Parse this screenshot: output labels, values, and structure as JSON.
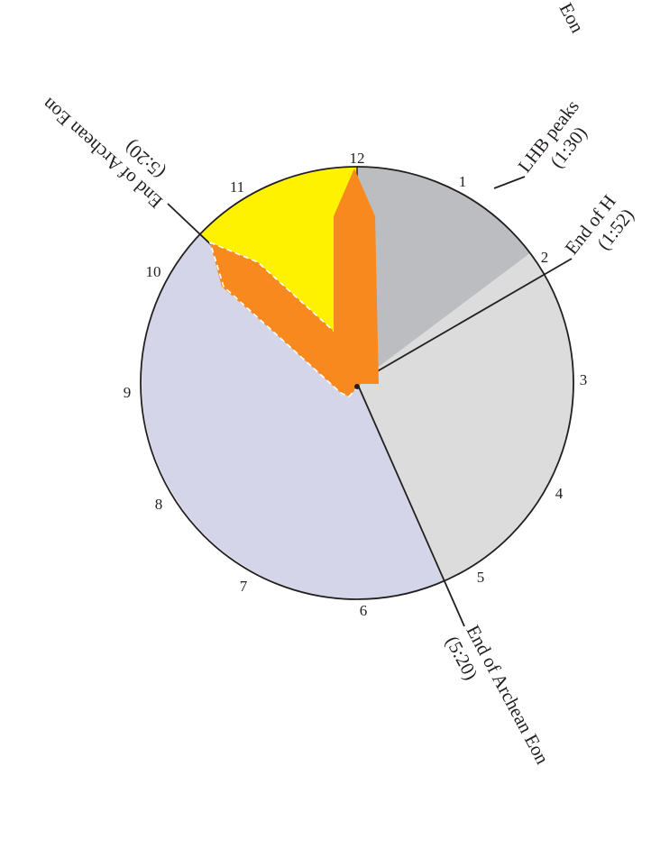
{
  "clock": {
    "numerals": [
      "12",
      "1",
      "2",
      "3",
      "4",
      "5",
      "6",
      "7",
      "8",
      "9",
      "10",
      "11"
    ]
  },
  "labels": {
    "top_right_partial": "Eon",
    "lhb_title": "LHB peaks",
    "lhb_time": "(1:30)",
    "right_partial_title": "End of H",
    "right_partial_time": "(1:52)",
    "archean_upper_title": "End of Archean Eon",
    "archean_upper_time": "(5:20)",
    "archean_lower_title": "End of Archean Eon",
    "archean_lower_time": "(5:20)"
  },
  "colors": {
    "sector_dark_gray": "#bcbdc0",
    "sector_light_gray": "#dcdcdc",
    "sector_lavender": "#d4d5e8",
    "sector_yellow": "#fff200",
    "hands": "#f7891f",
    "outline": "#231f20"
  }
}
